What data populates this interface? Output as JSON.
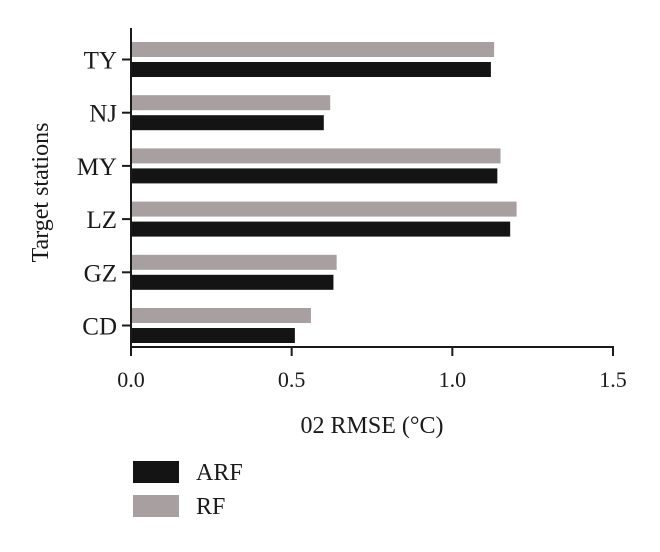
{
  "chart_data": {
    "type": "bar",
    "orientation": "horizontal",
    "categories": [
      "CD",
      "GZ",
      "LZ",
      "MY",
      "NJ",
      "TY"
    ],
    "series": [
      {
        "name": "ARF",
        "values": [
          0.51,
          0.63,
          1.18,
          1.14,
          0.6,
          1.12
        ],
        "color": "#141414"
      },
      {
        "name": "RF",
        "values": [
          0.56,
          0.64,
          1.2,
          1.15,
          0.62,
          1.13
        ],
        "color": "#a8a0a0"
      }
    ],
    "xlabel": "02 RMSE (°C)",
    "ylabel": "Target stations",
    "xlim": [
      0,
      1.5
    ],
    "x_ticks": [
      "0.0",
      "0.5",
      "1.0",
      "1.5"
    ],
    "grid": false,
    "legend_position": "bottom-left"
  }
}
